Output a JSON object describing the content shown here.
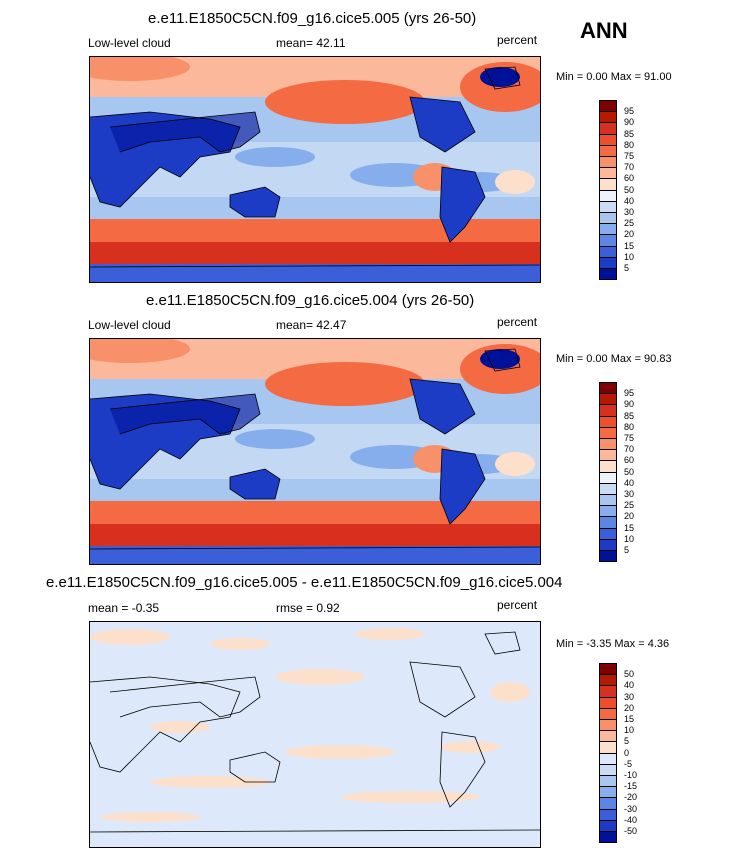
{
  "season": "ANN",
  "panels": [
    {
      "title": "e.e11.E1850C5CN.f09_g16.cice5.005 (yrs 26-50)",
      "left_label": "Low-level cloud",
      "center_label": "mean=  42.11",
      "right_label": "percent",
      "minmax": "Min =   0.00 Max =  91.00"
    },
    {
      "title": "e.e11.E1850C5CN.f09_g16.cice5.004 (yrs 26-50)",
      "left_label": "Low-level cloud",
      "center_label": "mean=  42.47",
      "right_label": "percent",
      "minmax": "Min =   0.00 Max =  90.83"
    },
    {
      "title": "e.e11.E1850C5CN.f09_g16.cice5.005 - e.e11.E1850C5CN.f09_g16.cice5.004",
      "left_label": "mean =  -0.35",
      "center_label": "rmse =   0.92",
      "right_label": "percent",
      "minmax": "Min =  -3.35 Max =   4.36"
    }
  ],
  "colorbar_abs": {
    "labels": [
      "95",
      "90",
      "85",
      "80",
      "75",
      "70",
      "60",
      "50",
      "40",
      "30",
      "25",
      "20",
      "15",
      "10",
      "5"
    ],
    "colors": [
      "#7f0000",
      "#b51a00",
      "#d7301f",
      "#ec4f2b",
      "#f36a43",
      "#f8906a",
      "#fbb89a",
      "#fde0cc",
      "#eef3fa",
      "#c9dcf4",
      "#a7c7f0",
      "#86aeec",
      "#5a87e4",
      "#3a5fd8",
      "#1c3cc5",
      "#001199"
    ]
  },
  "colorbar_diff": {
    "labels": [
      "50",
      "40",
      "30",
      "20",
      "15",
      "10",
      "5",
      "0",
      "-5",
      "-10",
      "-15",
      "-20",
      "-30",
      "-40",
      "-50"
    ],
    "colors": [
      "#7f0000",
      "#b51a00",
      "#d7301f",
      "#ec4f2b",
      "#f36a43",
      "#f8906a",
      "#fbb89a",
      "#fde0cc",
      "#dde9fa",
      "#c9dcf4",
      "#a7c7f0",
      "#86aeec",
      "#5a87e4",
      "#3a5fd8",
      "#1c3cc5",
      "#001199"
    ]
  }
}
